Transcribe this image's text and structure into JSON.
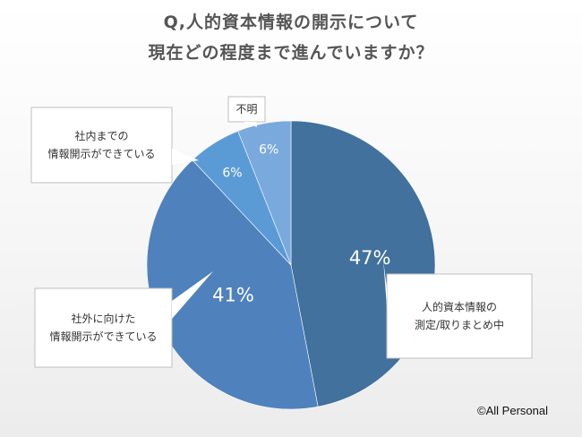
{
  "title": {
    "line1": "Q,人的資本情報の開示について",
    "line2": "現在どの程度まで進んでいますか？"
  },
  "chart_data": {
    "type": "pie",
    "start_angle_deg": 0,
    "direction": "clockwise",
    "slices": [
      {
        "label": "人的資本情報の\n測定/取りまとめ中",
        "value": 47,
        "value_label": "47%",
        "color": "#41719c"
      },
      {
        "label": "社外に向けた\n情報開示ができている",
        "value": 41,
        "value_label": "41%",
        "color": "#4f81bd"
      },
      {
        "label": "社内までの\n情報開示ができている",
        "value": 6,
        "value_label": "6%",
        "color": "#5b9bd5"
      },
      {
        "label": "不明",
        "value": 6,
        "value_label": "6%",
        "color": "#7aa9dd"
      }
    ]
  },
  "copyright": "©All Personal"
}
